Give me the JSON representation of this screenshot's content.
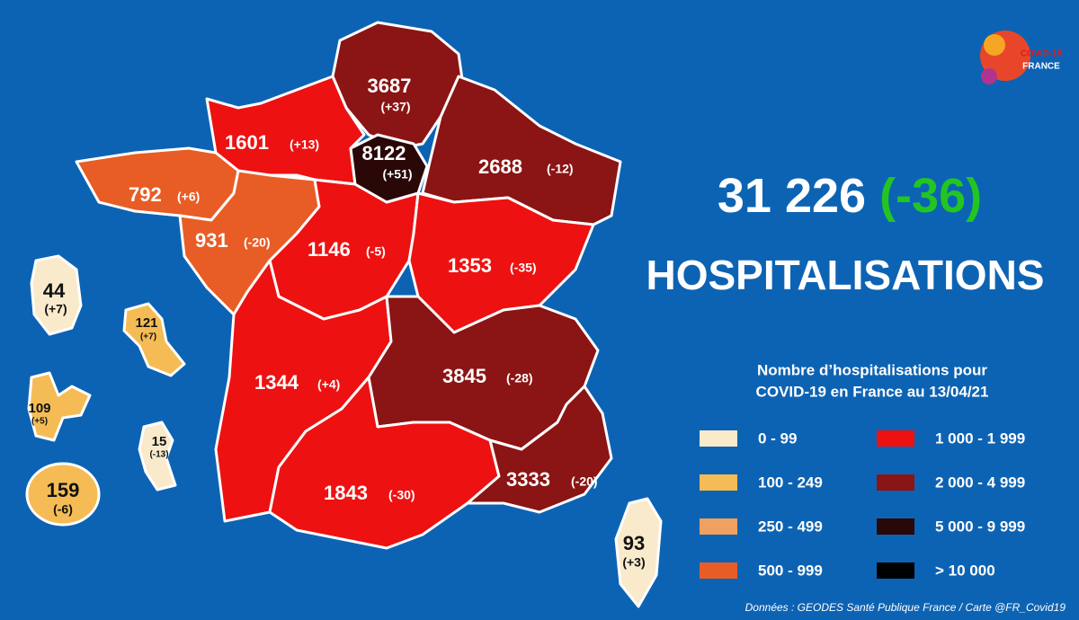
{
  "logo": {
    "line1": "COVID-19",
    "line2": "FRANCE"
  },
  "headline": {
    "total": "31 226",
    "change": "(-36)",
    "label": "HOSPITALISATIONS"
  },
  "regions": [
    {
      "value": 3687,
      "change": "(+37)"
    },
    {
      "value": 1601,
      "change": "(+13)"
    },
    {
      "value": 8122,
      "change": "(+51)"
    },
    {
      "value": 2688,
      "change": "(-12)"
    },
    {
      "value": 792,
      "change": "(+6)"
    },
    {
      "value": 931,
      "change": "(-20)"
    },
    {
      "value": 1146,
      "change": "(-5)"
    },
    {
      "value": 1353,
      "change": "(-35)"
    },
    {
      "value": 1344,
      "change": "(+4)"
    },
    {
      "value": 3845,
      "change": "(-28)"
    },
    {
      "value": 3333,
      "change": "(-20)"
    },
    {
      "value": 1843,
      "change": "(-30)"
    },
    {
      "value": 93,
      "change": "(+3)"
    },
    {
      "value": 44,
      "change": "(+7)"
    },
    {
      "value": 121,
      "change": "(+7)"
    },
    {
      "value": 109,
      "change": "(+5)"
    },
    {
      "value": 15,
      "change": "(-13)"
    },
    {
      "value": 159,
      "change": "(-6)"
    }
  ],
  "legend": {
    "title": [
      "Nombre d’hospitalisations pour",
      "COVID-19 en France au 13/04/21"
    ],
    "items": [
      "0 - 99",
      "100 - 249",
      "250 - 499",
      "500 - 999",
      "1 000 - 1 999",
      "2 000 - 4 999",
      "5 000 - 9 999",
      "> 10 000"
    ]
  },
  "source": "Données : GEODES Santé Publique France / Carte @FR_Covid19"
}
